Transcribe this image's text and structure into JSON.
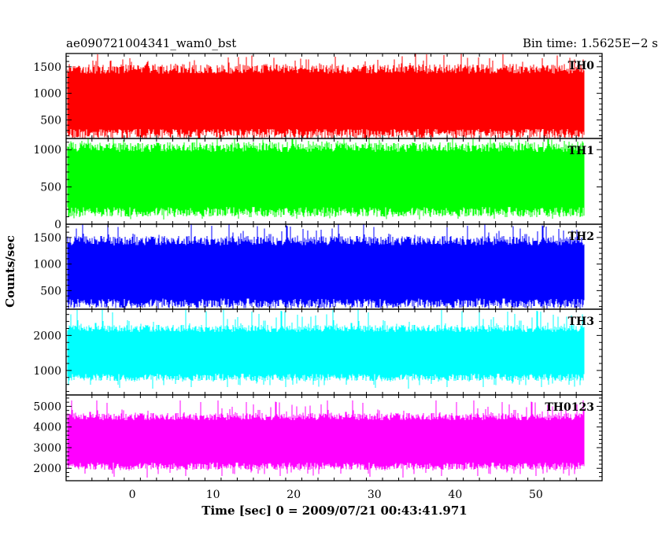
{
  "header": {
    "left_title": "ae090721004341_wam0_bst",
    "right_title": "Bin time: 1.5625E−2 s"
  },
  "axes": {
    "xlabel": "Time [sec] 0 = 2009/07/21 00:43:41.971",
    "ylabel": "Counts/sec"
  },
  "chart_data": {
    "type": "line",
    "xlim": [
      -8.2,
      58.2
    ],
    "x_ticks": [
      0,
      10,
      20,
      30,
      40,
      50
    ],
    "x_range": [
      -8.0,
      56.0
    ],
    "bin_time": 0.015625,
    "grid": false,
    "panels": [
      {
        "name": "TH0",
        "color": "#ff0000",
        "ylim": [
          150,
          1750
        ],
        "y_ticks": [
          500,
          1000,
          1500
        ],
        "approx_mean": 850,
        "approx_band": [
          280,
          1500
        ],
        "approx_extremes": [
          120,
          1750
        ]
      },
      {
        "name": "TH1",
        "color": "#00ff00",
        "ylim": [
          0,
          1150
        ],
        "y_ticks": [
          0,
          500,
          1000
        ],
        "approx_mean": 600,
        "approx_band": [
          180,
          1050
        ],
        "approx_extremes": [
          60,
          1150
        ]
      },
      {
        "name": "TH2",
        "color": "#0000ff",
        "ylim": [
          150,
          1750
        ],
        "y_ticks": [
          500,
          1000,
          1500
        ],
        "approx_mean": 850,
        "approx_band": [
          320,
          1500
        ],
        "approx_extremes": [
          130,
          1750
        ]
      },
      {
        "name": "TH3",
        "color": "#00ffff",
        "ylim": [
          300,
          2750
        ],
        "y_ticks": [
          1000,
          2000
        ],
        "approx_mean": 1500,
        "approx_band": [
          800,
          2200
        ],
        "approx_extremes": [
          480,
          2750
        ]
      },
      {
        "name": "TH0123",
        "color": "#ff00ff",
        "ylim": [
          1400,
          5550
        ],
        "y_ticks": [
          2000,
          3000,
          4000,
          5000
        ],
        "approx_mean": 3300,
        "approx_band": [
          2200,
          4600
        ],
        "approx_extremes": [
          1550,
          5300
        ]
      }
    ]
  }
}
